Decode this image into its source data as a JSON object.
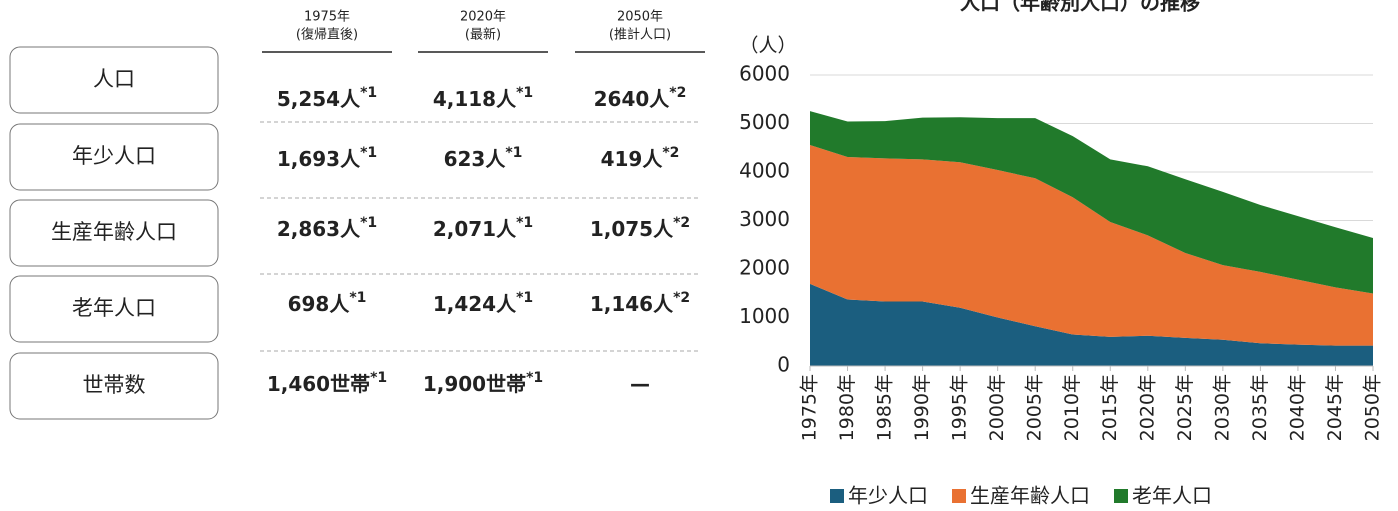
{
  "table": {
    "columns": [
      {
        "year": "1975年",
        "sub": "(復帰直後)"
      },
      {
        "year": "2020年",
        "sub": "(最新)"
      },
      {
        "year": "2050年",
        "sub": "(推計人口)"
      }
    ],
    "rows": [
      {
        "label": "人口",
        "cells": [
          {
            "value": "5,254人",
            "note": "*1"
          },
          {
            "value": "4,118人",
            "note": "*1"
          },
          {
            "value": "2640人",
            "note": "*2"
          }
        ]
      },
      {
        "label": "年少人口",
        "cells": [
          {
            "value": "1,693人",
            "note": "*1"
          },
          {
            "value": "623人",
            "note": "*1"
          },
          {
            "value": "419人",
            "note": "*2"
          }
        ]
      },
      {
        "label": "生産年齢人口",
        "cells": [
          {
            "value": "2,863人",
            "note": "*1"
          },
          {
            "value": "2,071人",
            "note": "*1"
          },
          {
            "value": "1,075人",
            "note": "*2"
          }
        ]
      },
      {
        "label": "老年人口",
        "cells": [
          {
            "value": "698人",
            "note": "*1"
          },
          {
            "value": "1,424人",
            "note": "*1"
          },
          {
            "value": "1,146人",
            "note": "*2"
          }
        ]
      },
      {
        "label": "世帯数",
        "cells": [
          {
            "value": "1,460世帯",
            "note": "*1"
          },
          {
            "value": "1,900世帯",
            "note": "*1"
          },
          {
            "value": "—"
          }
        ]
      }
    ]
  },
  "chart_data": {
    "type": "stacked_area",
    "title": "人口（年齢別人口）の推移",
    "y_label": "（人）",
    "categories": [
      "1975年",
      "1980年",
      "1985年",
      "1990年",
      "1995年",
      "2000年",
      "2005年",
      "2010年",
      "2015年",
      "2020年",
      "2025年",
      "2030年",
      "2035年",
      "2040年",
      "2045年",
      "2050年"
    ],
    "series": [
      {
        "name": "年少人口",
        "color": "#1b5e7f",
        "values": [
          1693,
          1370,
          1330,
          1330,
          1200,
          1000,
          820,
          650,
          600,
          623,
          580,
          540,
          470,
          440,
          420,
          419
        ]
      },
      {
        "name": "生産年齢人口",
        "color": "#e97132",
        "values": [
          2863,
          2940,
          2950,
          2930,
          3000,
          3040,
          3050,
          2830,
          2370,
          2071,
          1750,
          1540,
          1470,
          1340,
          1200,
          1075
        ]
      },
      {
        "name": "老年人口",
        "color": "#217a2b",
        "values": [
          698,
          730,
          770,
          860,
          930,
          1070,
          1240,
          1260,
          1290,
          1424,
          1520,
          1510,
          1380,
          1310,
          1240,
          1146
        ]
      }
    ],
    "ylim": [
      0,
      6000
    ],
    "yticks": [
      0,
      1000,
      2000,
      3000,
      4000,
      5000,
      6000
    ],
    "grid": true,
    "legend": "bottom"
  }
}
